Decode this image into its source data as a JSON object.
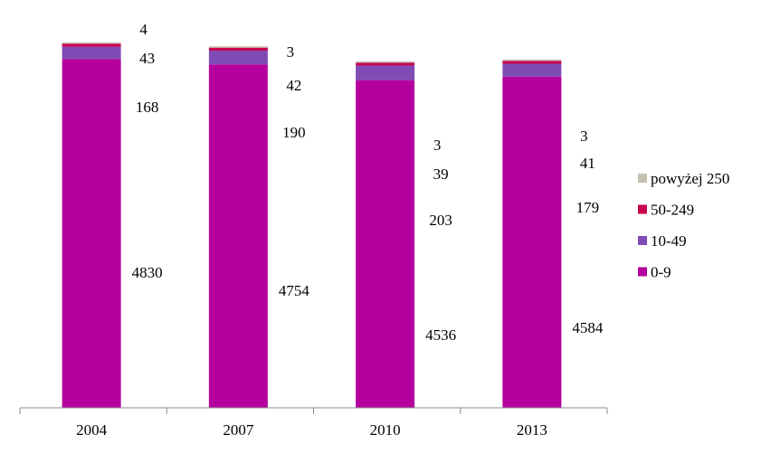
{
  "chart_data": {
    "type": "bar",
    "stacked": true,
    "categories": [
      "2004",
      "2007",
      "2010",
      "2013"
    ],
    "series": [
      {
        "name": "0-9",
        "color": "#B5009D",
        "values": [
          4830,
          4754,
          4536,
          4584
        ]
      },
      {
        "name": "10-49",
        "color": "#7F4BB4",
        "values": [
          168,
          190,
          203,
          179
        ]
      },
      {
        "name": "50-249",
        "color": "#C8004E",
        "values": [
          43,
          42,
          39,
          41
        ]
      },
      {
        "name": "powyżej 250",
        "color": "#C4C1B0",
        "values": [
          4,
          3,
          3,
          3
        ]
      }
    ],
    "legend": {
      "placement": "right",
      "order": [
        "powyżej 250",
        "50-249",
        "10-49",
        "0-9"
      ]
    },
    "axis": {
      "x_tick_labels": [
        "2004",
        "2007",
        "2010",
        "2013"
      ],
      "y_axis_visible": false,
      "y_baseline": 0
    },
    "grid": false
  }
}
